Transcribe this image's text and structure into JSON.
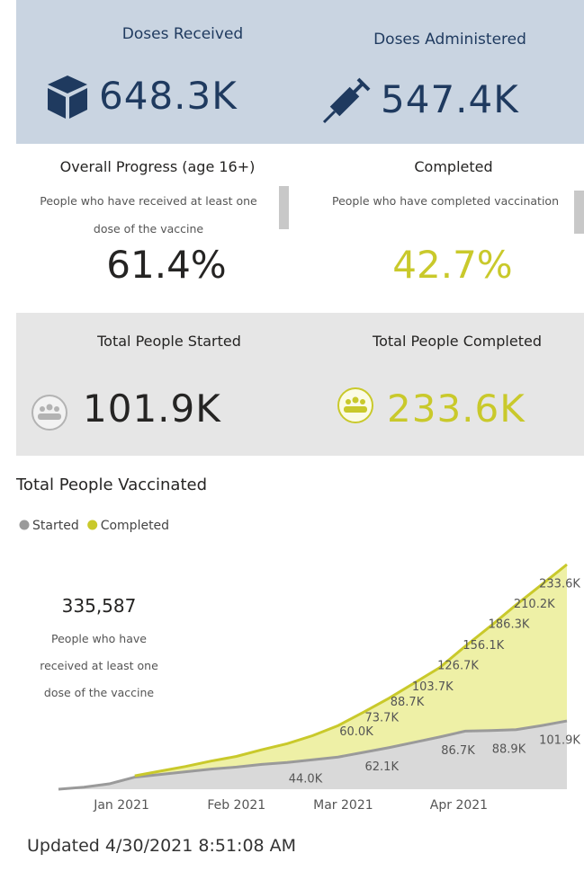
{
  "cards": [
    {
      "title": "Doses Received",
      "value": "648.3K"
    },
    {
      "title": "Doses Administered",
      "value": "547.4K"
    }
  ],
  "progress": [
    {
      "title": "Overall Progress (age 16+)",
      "description": "People who have received at least one dose of the vaccine",
      "value": "61.4%"
    },
    {
      "title": "Completed",
      "description": "People who have completed vaccination",
      "value": "42.7%"
    }
  ],
  "people": [
    {
      "title": "Total People Started",
      "value": "101.9K"
    },
    {
      "title": "Total People Completed",
      "value": "233.6K"
    }
  ],
  "chart_data": {
    "type": "stacked_area",
    "title": "Total People Vaccinated",
    "categories": [
      null,
      null,
      null,
      null,
      null,
      null,
      null,
      null,
      null,
      null,
      null,
      null,
      null,
      null,
      null,
      null,
      null,
      null,
      null,
      null,
      null
    ],
    "xticks": [
      {
        "value": 2.48,
        "label": "Jan 2021"
      },
      {
        "value": 7.0,
        "label": "Feb 2021"
      },
      {
        "value": 11.2,
        "label": "Mar 2021"
      },
      {
        "value": 15.75,
        "label": "Apr 2021"
      }
    ],
    "series": [
      {
        "name": "Started",
        "color": "#9a9a9a",
        "fill": "#d9d9d9",
        "values": [
          0,
          3,
          8,
          18,
          22,
          26,
          30,
          33,
          37,
          40,
          44.0,
          48,
          55,
          62.1,
          70,
          78,
          86.7,
          87.5,
          88.9,
          95,
          101.9
        ],
        "value_labels": [
          null,
          null,
          null,
          null,
          null,
          null,
          null,
          null,
          null,
          null,
          "44.0K",
          null,
          null,
          "62.1K",
          null,
          null,
          "86.7K",
          null,
          "88.9K",
          null,
          "101.9K"
        ]
      },
      {
        "name": "Completed",
        "color": "#c9c92b",
        "fill": "#eef0a6",
        "values": [
          null,
          null,
          null,
          2,
          5,
          8,
          12,
          16,
          22,
          28,
          36,
          47,
          60.0,
          73.7,
          88.7,
          103.7,
          126.7,
          156.1,
          186.3,
          210.2,
          233.6
        ],
        "value_labels": [
          null,
          null,
          null,
          null,
          null,
          null,
          null,
          null,
          null,
          null,
          null,
          null,
          "60.0K",
          "73.7K",
          "88.7K",
          "103.7K",
          "126.7K",
          "156.1K",
          "186.3K",
          "210.2K",
          "233.6K"
        ]
      }
    ],
    "annotation": {
      "value": "335,587",
      "text": "People who have received at least one dose of the vaccine"
    }
  },
  "updated": "Updated 4/30/2021 8:51:08 AM"
}
